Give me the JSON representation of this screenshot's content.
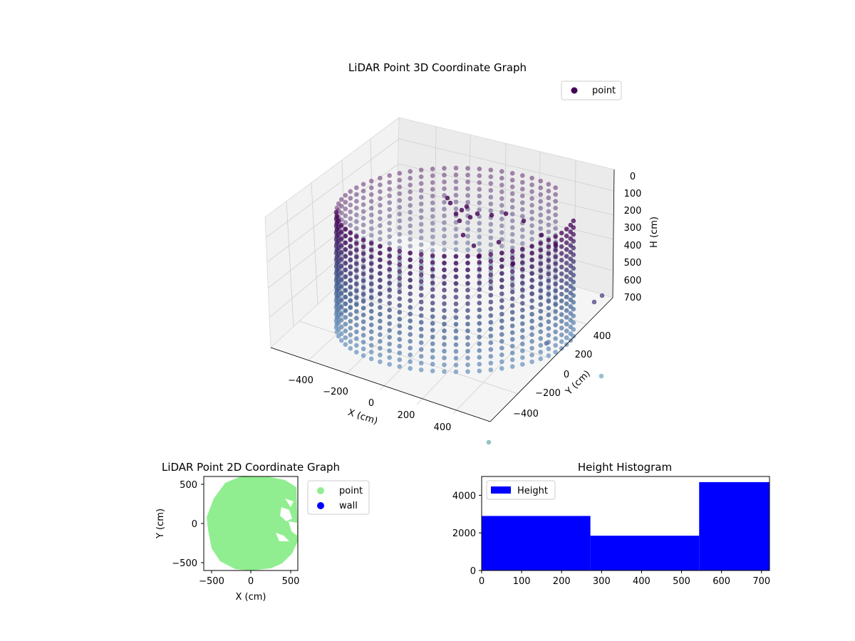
{
  "chart_data": [
    {
      "type": "scatter",
      "projection": "3d",
      "title": "LiDAR Point 3D Coordinate Graph",
      "xlabel": "X (cm)",
      "ylabel": "Y (cm)",
      "zlabel": "H (cm)",
      "xticks": [
        "−400",
        "−200",
        "0",
        "200",
        "400"
      ],
      "yticks": [
        "−400",
        "−200",
        "0",
        "200",
        "400"
      ],
      "zticks": [
        "0",
        "100",
        "200",
        "300",
        "400",
        "500",
        "600",
        "700"
      ],
      "xlim": [
        -550,
        550
      ],
      "ylim": [
        -550,
        550
      ],
      "zlim": [
        0,
        720
      ],
      "z_inverted": true,
      "legend": {
        "entries": [
          "point"
        ],
        "placement": "top-right"
      },
      "colormap": "viridis",
      "point_color": "#440154",
      "shape": "cylindrical wall of points, radius ~500 cm, height 0-700 cm",
      "grid": true
    },
    {
      "type": "scatter",
      "title": "LiDAR Point 2D Coordinate Graph",
      "xlabel": "X (cm)",
      "ylabel": "Y (cm)",
      "xlim": [
        -600,
        600
      ],
      "ylim": [
        -600,
        600
      ],
      "xticks": [
        "−500",
        "0",
        "500"
      ],
      "yticks": [
        "−500",
        "0",
        "500"
      ],
      "series": [
        {
          "name": "point",
          "color": "#90ee90"
        },
        {
          "name": "wall",
          "color": "#0000ff"
        }
      ],
      "legend_placement": "outside-right"
    },
    {
      "type": "bar",
      "title": "Height Histogram",
      "bins": [
        [
          0,
          272
        ],
        [
          272,
          544
        ],
        [
          544,
          720
        ]
      ],
      "values": [
        2900,
        1850,
        4700
      ],
      "xlim": [
        0,
        720
      ],
      "ylim": [
        0,
        5000
      ],
      "xticks": [
        "0",
        "100",
        "200",
        "300",
        "400",
        "500",
        "600",
        "700"
      ],
      "yticks": [
        "0",
        "2000",
        "4000"
      ],
      "series": [
        {
          "name": "Height",
          "color": "#0000ff"
        }
      ],
      "legend_placement": "top-left"
    }
  ]
}
